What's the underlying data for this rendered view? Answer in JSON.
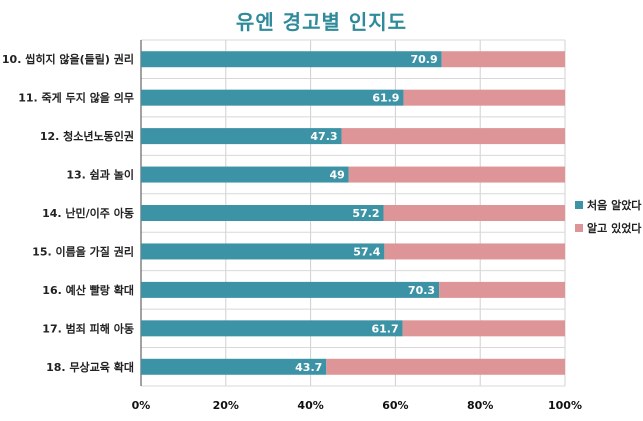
{
  "chart_data": {
    "type": "bar",
    "orientation": "horizontal",
    "stacked": true,
    "percent": true,
    "title": "유엔 경고별 인지도",
    "categories": [
      "10. 씹히지 않을(들릴) 권리",
      "11. 죽게 두지 않을 의무",
      "12. 청소년노동인권",
      "13. 쉼과 놀이",
      "14. 난민/이주 아동",
      "15. 이름을 가질 권리",
      "16. 예산 빨랑 확대",
      "17. 범죄 피해 아동",
      "18. 무상교육 확대"
    ],
    "series": [
      {
        "name": "처음 알았다",
        "color": "#3d93a6",
        "values": [
          70.9,
          61.9,
          47.3,
          49,
          57.2,
          57.4,
          70.3,
          61.7,
          43.7
        ]
      },
      {
        "name": "알고 있었다",
        "color": "#de9597",
        "values": [
          29.1,
          38.1,
          52.7,
          51,
          42.8,
          42.6,
          29.7,
          38.3,
          56.3
        ]
      }
    ],
    "data_labels": [
      "70.9",
      "61.9",
      "47.3",
      "49",
      "57.2",
      "57.4",
      "70.3",
      "61.7",
      "43.7"
    ],
    "x_ticks": [
      "0%",
      "20%",
      "40%",
      "60%",
      "80%",
      "100%"
    ],
    "xlim": [
      0,
      100
    ],
    "grid": true,
    "legend_position": "right"
  }
}
